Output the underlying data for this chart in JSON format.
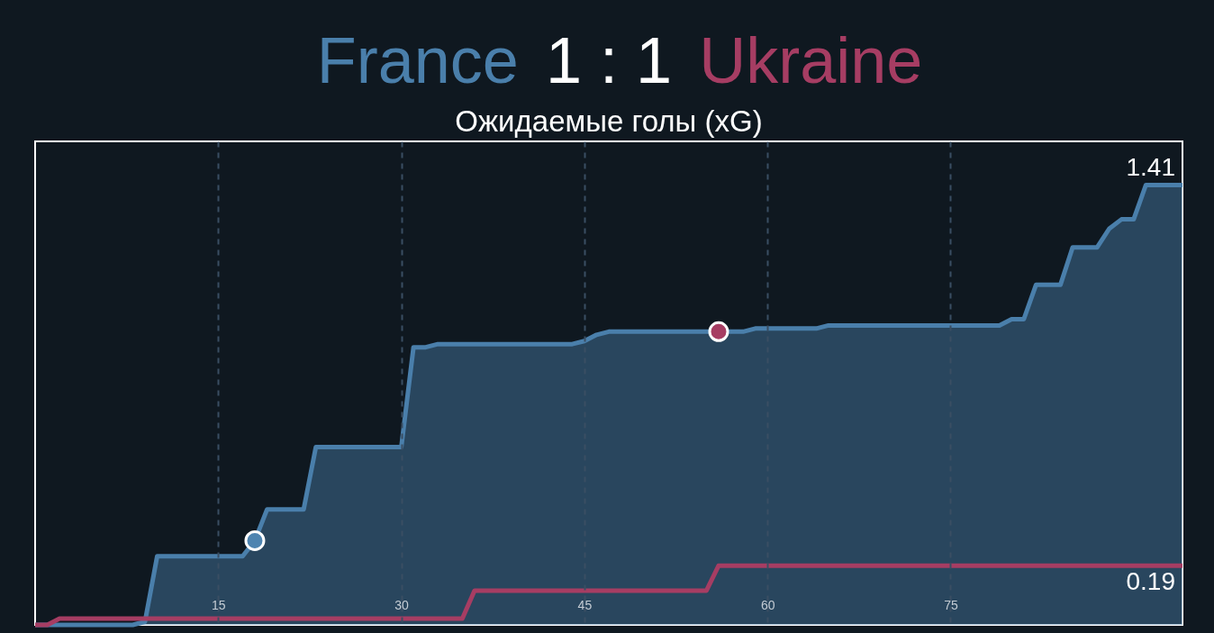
{
  "chart_data": {
    "type": "area",
    "title": "1 : 1",
    "subtitle": "Ожидаемые голы (xG)",
    "xlim": [
      0,
      94
    ],
    "xticks": [
      15,
      30,
      45,
      60,
      75
    ],
    "ylim": [
      0,
      1.55
    ],
    "grid": "x",
    "tick_labels": "x",
    "series": [
      {
        "name": "France",
        "color": "#4a7fab",
        "x": [
          0,
          8,
          9,
          10,
          17,
          18,
          19,
          22,
          23,
          30,
          31,
          32,
          33,
          44,
          45,
          46,
          47,
          58,
          59,
          64,
          65,
          79,
          80,
          81,
          82,
          84,
          85,
          87,
          88,
          89,
          90,
          91,
          94
        ],
        "values": [
          0,
          0,
          0.01,
          0.22,
          0.22,
          0.27,
          0.37,
          0.37,
          0.57,
          0.57,
          0.89,
          0.89,
          0.9,
          0.9,
          0.91,
          0.93,
          0.94,
          0.94,
          0.95,
          0.95,
          0.96,
          0.96,
          0.98,
          0.98,
          1.09,
          1.09,
          1.21,
          1.21,
          1.27,
          1.3,
          1.3,
          1.41,
          1.41
        ],
        "value_labels": [
          null,
          null,
          null,
          null,
          null,
          null,
          null,
          null,
          null,
          null,
          null,
          null,
          null,
          null,
          null,
          null,
          null,
          null,
          null,
          null,
          null,
          null,
          null,
          null,
          null,
          null,
          null,
          null,
          null,
          null,
          null,
          null,
          "1.41"
        ]
      },
      {
        "name": "Ukraine",
        "type": "line",
        "color": "#a63d63",
        "x": [
          0,
          1,
          2,
          35,
          36,
          55,
          56,
          94
        ],
        "values": [
          0,
          0,
          0.02,
          0.02,
          0.11,
          0.11,
          0.19,
          0.19
        ],
        "value_labels": [
          null,
          null,
          null,
          null,
          null,
          null,
          null,
          "0.19"
        ]
      },
      {
        "type": "scatter",
        "marker": "circle",
        "color": "#4e84b0",
        "x": [
          18
        ],
        "values": [
          0.27
        ]
      },
      {
        "type": "scatter",
        "marker": "circle",
        "color": "#a63d63",
        "x": [
          56
        ],
        "values": [
          0.94
        ]
      }
    ]
  }
}
